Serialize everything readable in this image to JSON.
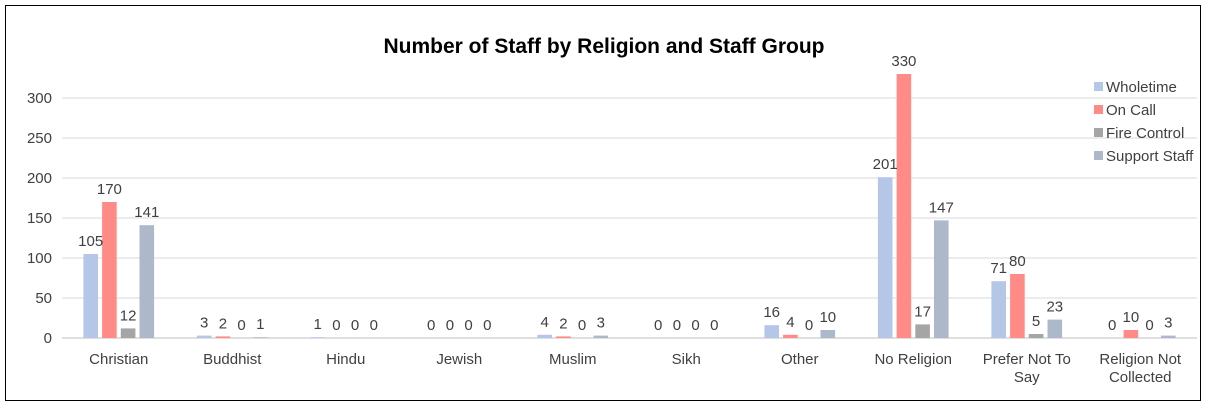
{
  "chart_data": {
    "type": "bar",
    "title": "Number of Staff by Religion and Staff Group",
    "xlabel": "",
    "ylabel": "",
    "ylim": [
      0,
      330
    ],
    "yticks": [
      0,
      50,
      100,
      150,
      200,
      250,
      300
    ],
    "grid": true,
    "legend_position": "right",
    "categories": [
      "Christian",
      "Buddhist",
      "Hindu",
      "Jewish",
      "Muslim",
      "Sikh",
      "Other",
      "No Religion",
      "Prefer Not To Say",
      "Religion Not Collected"
    ],
    "category_label_lines": [
      [
        "Christian"
      ],
      [
        "Buddhist"
      ],
      [
        "Hindu"
      ],
      [
        "Jewish"
      ],
      [
        "Muslim"
      ],
      [
        "Sikh"
      ],
      [
        "Other"
      ],
      [
        "No Religion"
      ],
      [
        "Prefer Not To",
        "Say"
      ],
      [
        "Religion Not",
        "Collected"
      ]
    ],
    "series": [
      {
        "name": "Wholetime",
        "color": "#b4c7e7",
        "values": [
          105,
          3,
          1,
          0,
          4,
          0,
          16,
          201,
          71,
          0
        ]
      },
      {
        "name": "On Call",
        "color": "#ff8b86",
        "values": [
          170,
          2,
          0,
          0,
          2,
          0,
          4,
          330,
          80,
          10
        ]
      },
      {
        "name": "Fire Control",
        "color": "#a5a5a5",
        "values": [
          12,
          0,
          0,
          0,
          0,
          0,
          0,
          17,
          5,
          0
        ]
      },
      {
        "name": "Support Staff",
        "color": "#adb9ca",
        "values": [
          141,
          1,
          0,
          0,
          3,
          0,
          10,
          147,
          23,
          3
        ]
      }
    ]
  }
}
